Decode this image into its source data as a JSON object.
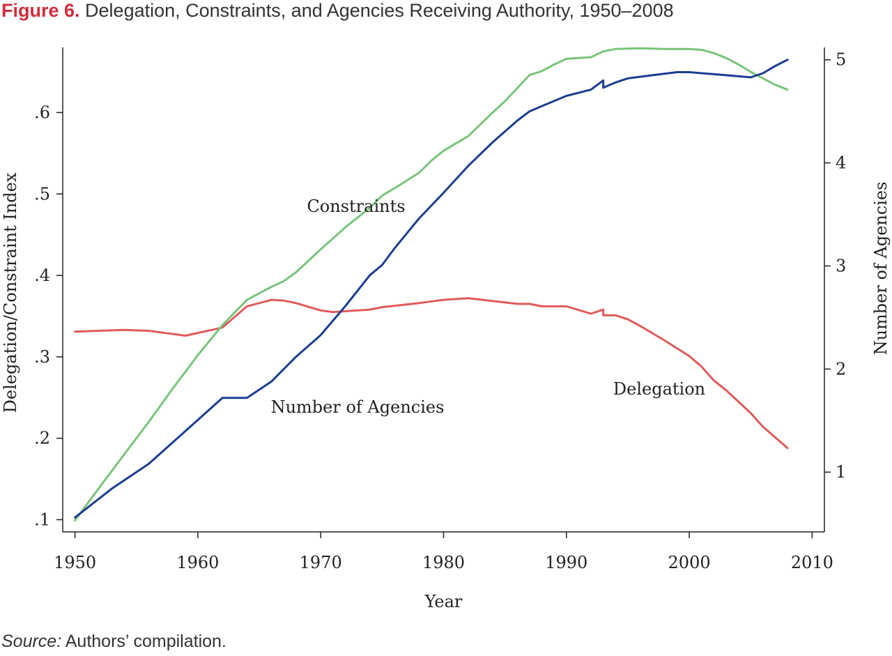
{
  "figure": {
    "label": "Figure 6.",
    "title": "Delegation, Constraints, and Agencies Receiving Authority, 1950–2008",
    "source_label": "Source:",
    "source_text": "Authors’ compilation."
  },
  "colors": {
    "delegation": "#e05a5a",
    "constraints": "#79c47a",
    "agencies": "#1c3d91",
    "figure_label": "#d22d3c"
  },
  "chart_data": {
    "type": "line",
    "xlabel": "Year",
    "ylabel_left": "Delegation/Constraint Index",
    "ylabel_right": "Number of Agencies",
    "xlim": [
      1949,
      2011
    ],
    "ylim_left": [
      0.085,
      0.68
    ],
    "ylim_right": [
      0.42,
      5.12
    ],
    "x_ticks": [
      1950,
      1960,
      1970,
      1980,
      1990,
      2000,
      2010
    ],
    "x_tick_labels": [
      "1950",
      "1960",
      "1970",
      "1980",
      "1990",
      "2000",
      "2010"
    ],
    "y_left_ticks": [
      0.1,
      0.2,
      0.3,
      0.4,
      0.5,
      0.6
    ],
    "y_left_tick_labels": [
      ".1",
      ".2",
      ".3",
      ".4",
      ".5",
      ".6"
    ],
    "y_right_ticks": [
      1,
      2,
      3,
      4,
      5
    ],
    "y_right_tick_labels": [
      "1",
      "2",
      "3",
      "4",
      "5"
    ],
    "grid": false,
    "legend": "none",
    "series": [
      {
        "name": "Delegation",
        "axis": "left",
        "points": [
          [
            1950,
            0.331
          ],
          [
            1954,
            0.333
          ],
          [
            1956,
            0.332
          ],
          [
            1959,
            0.326
          ],
          [
            1962,
            0.336
          ],
          [
            1964,
            0.362
          ],
          [
            1966,
            0.37
          ],
          [
            1967,
            0.369
          ],
          [
            1968,
            0.366
          ],
          [
            1970,
            0.357
          ],
          [
            1971,
            0.355
          ],
          [
            1974,
            0.358
          ],
          [
            1975,
            0.361
          ],
          [
            1978,
            0.366
          ],
          [
            1980,
            0.37
          ],
          [
            1982,
            0.372
          ],
          [
            1986,
            0.365
          ],
          [
            1987,
            0.365
          ],
          [
            1988,
            0.362
          ],
          [
            1990,
            0.362
          ],
          [
            1992,
            0.353
          ],
          [
            1993,
            0.358
          ],
          [
            1993,
            0.351
          ],
          [
            1994,
            0.351
          ],
          [
            1995,
            0.346
          ],
          [
            1996,
            0.338
          ],
          [
            1998,
            0.32
          ],
          [
            2000,
            0.301
          ],
          [
            2001,
            0.288
          ],
          [
            2002,
            0.271
          ],
          [
            2003,
            0.259
          ],
          [
            2004,
            0.245
          ],
          [
            2005,
            0.231
          ],
          [
            2006,
            0.214
          ],
          [
            2007,
            0.201
          ],
          [
            2008,
            0.188
          ]
        ],
        "labels_on_chart": "Delegation"
      },
      {
        "name": "Constraints",
        "axis": "left",
        "points": [
          [
            1950,
            0.099
          ],
          [
            1952,
            0.14
          ],
          [
            1954,
            0.18
          ],
          [
            1956,
            0.22
          ],
          [
            1958,
            0.262
          ],
          [
            1960,
            0.302
          ],
          [
            1962,
            0.339
          ],
          [
            1964,
            0.37
          ],
          [
            1966,
            0.386
          ],
          [
            1967,
            0.393
          ],
          [
            1968,
            0.404
          ],
          [
            1969,
            0.418
          ],
          [
            1970,
            0.432
          ],
          [
            1972,
            0.459
          ],
          [
            1974,
            0.483
          ],
          [
            1975,
            0.498
          ],
          [
            1976,
            0.507
          ],
          [
            1978,
            0.526
          ],
          [
            1979,
            0.541
          ],
          [
            1980,
            0.553
          ],
          [
            1982,
            0.571
          ],
          [
            1984,
            0.6
          ],
          [
            1985,
            0.614
          ],
          [
            1986,
            0.63
          ],
          [
            1987,
            0.646
          ],
          [
            1988,
            0.651
          ],
          [
            1989,
            0.659
          ],
          [
            1990,
            0.666
          ],
          [
            1992,
            0.668
          ],
          [
            1993,
            0.675
          ],
          [
            1994,
            0.678
          ],
          [
            1996,
            0.679
          ],
          [
            1998,
            0.678
          ],
          [
            2000,
            0.678
          ],
          [
            2001,
            0.677
          ],
          [
            2002,
            0.673
          ],
          [
            2003,
            0.667
          ],
          [
            2004,
            0.659
          ],
          [
            2005,
            0.65
          ],
          [
            2006,
            0.642
          ],
          [
            2007,
            0.634
          ],
          [
            2008,
            0.628
          ]
        ],
        "labels_on_chart": "Constraints"
      },
      {
        "name": "Number of Agencies",
        "axis": "right",
        "points": [
          [
            1950,
            0.56
          ],
          [
            1953,
            0.84
          ],
          [
            1956,
            1.08
          ],
          [
            1959,
            1.4
          ],
          [
            1962,
            1.72
          ],
          [
            1964,
            1.72
          ],
          [
            1966,
            1.88
          ],
          [
            1968,
            2.12
          ],
          [
            1970,
            2.33
          ],
          [
            1972,
            2.61
          ],
          [
            1974,
            2.91
          ],
          [
            1975,
            3.01
          ],
          [
            1976,
            3.17
          ],
          [
            1978,
            3.46
          ],
          [
            1980,
            3.71
          ],
          [
            1982,
            3.97
          ],
          [
            1984,
            4.2
          ],
          [
            1986,
            4.41
          ],
          [
            1987,
            4.5
          ],
          [
            1988,
            4.55
          ],
          [
            1990,
            4.65
          ],
          [
            1992,
            4.71
          ],
          [
            1993,
            4.8
          ],
          [
            1993,
            4.73
          ],
          [
            1994,
            4.78
          ],
          [
            1995,
            4.82
          ],
          [
            1997,
            4.85
          ],
          [
            1999,
            4.88
          ],
          [
            2000,
            4.88
          ],
          [
            2001,
            4.87
          ],
          [
            2002,
            4.86
          ],
          [
            2003,
            4.85
          ],
          [
            2004,
            4.84
          ],
          [
            2005,
            4.83
          ],
          [
            2006,
            4.87
          ],
          [
            2007,
            4.94
          ],
          [
            2008,
            5.0
          ]
        ],
        "labels_on_chart": "Number of Agencies"
      }
    ]
  }
}
